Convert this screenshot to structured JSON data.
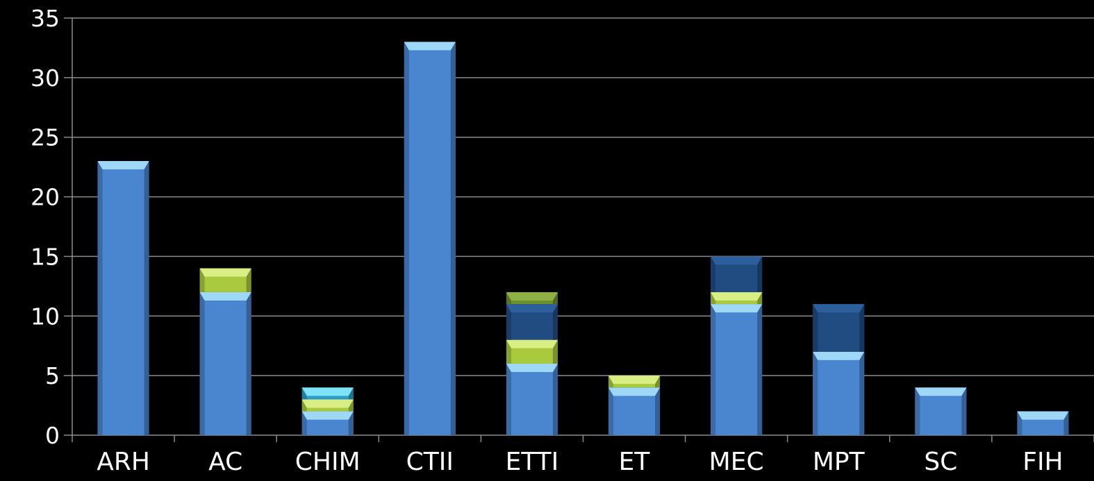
{
  "chart_data": {
    "type": "bar",
    "stacked": true,
    "title": "",
    "xlabel": "",
    "ylabel": "",
    "ylim": [
      0,
      35
    ],
    "yticks": [
      0,
      5,
      10,
      15,
      20,
      25,
      30,
      35
    ],
    "grid": true,
    "legend": "none",
    "categories": [
      "ARH",
      "AC",
      "CHIM",
      "CTII",
      "ETTI",
      "ET",
      "MEC",
      "MPT",
      "SC",
      "FIH"
    ],
    "series": [
      {
        "color": "#4a86d0",
        "capColor": "#9fd7f7",
        "values": [
          23,
          12,
          2,
          33,
          6,
          4,
          11,
          7,
          4,
          2
        ]
      },
      {
        "color": "#a9c93e",
        "capColor": "#d9ef86",
        "values": [
          0,
          2,
          1,
          0,
          2,
          1,
          1,
          0,
          0,
          0
        ]
      },
      {
        "color": "#2f9bc8",
        "capColor": "#7fe3f7",
        "values": [
          0,
          0,
          1,
          0,
          0,
          0,
          0,
          0,
          0,
          0
        ]
      },
      {
        "color": "#214c82",
        "capColor": "#2d5f9c",
        "values": [
          0,
          0,
          0,
          0,
          3,
          0,
          3,
          4,
          0,
          0
        ]
      },
      {
        "color": "#6f8f2c",
        "capColor": "#8fb043",
        "values": [
          0,
          0,
          0,
          0,
          1,
          0,
          0,
          0,
          0,
          0
        ]
      }
    ]
  }
}
